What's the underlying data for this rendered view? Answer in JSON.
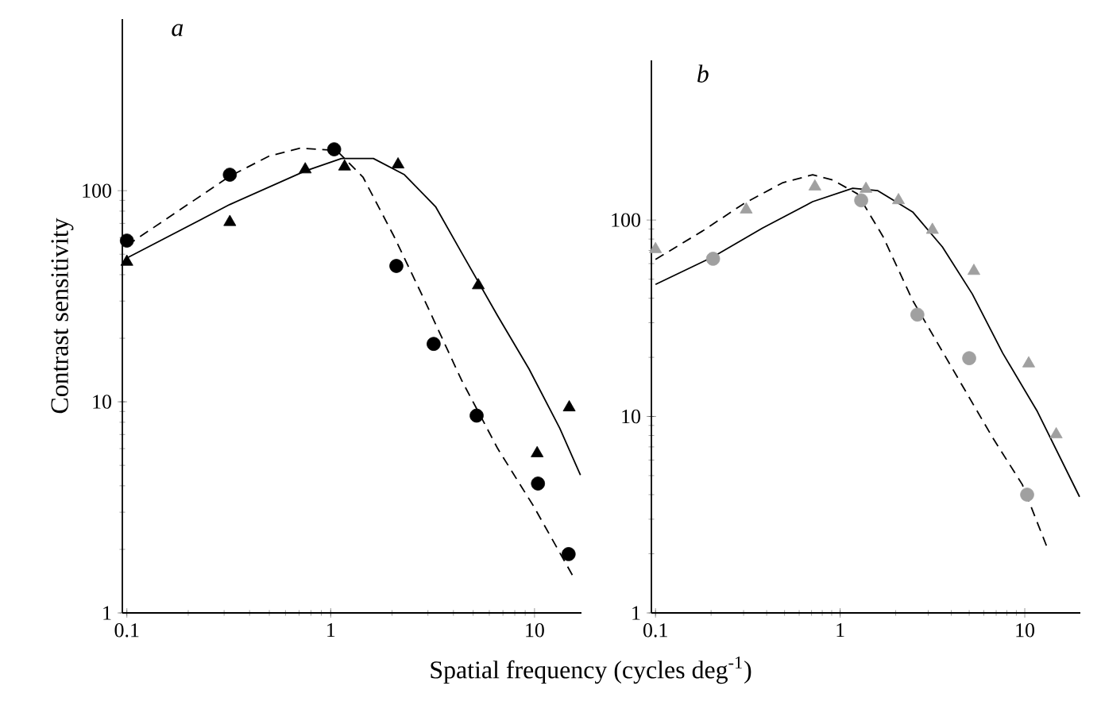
{
  "chart_data": [
    {
      "type": "scatter",
      "title": "*a*",
      "xlabel": "Spatial frequency (cycles deg$^{-1}$)",
      "ylabel": "Contrast sensitivity",
      "log": "xy",
      "xlim": [
        0.095,
        17
      ],
      "ylim": [
        1,
        650
      ],
      "xticks": [
        0.1,
        1,
        10
      ],
      "yticks": [
        1,
        10,
        100
      ],
      "series": [
        {
          "type": "scatter",
          "marker": "circle",
          "color": "#000000",
          "x": [
            0.1,
            0.32,
            1.04,
            2.1,
            3.2,
            5.2,
            10.4,
            14.7
          ],
          "values": [
            58,
            119,
            157,
            44,
            18.8,
            8.6,
            4.1,
            1.9
          ]
        },
        {
          "type": "scatter",
          "marker": "triangle",
          "color": "#000000",
          "x": [
            0.1,
            0.32,
            0.75,
            1.17,
            2.14,
            5.3,
            10.3,
            14.8
          ],
          "values": [
            46,
            71,
            126,
            130,
            133,
            35.6,
            5.7,
            9.4
          ]
        },
        {
          "type": "line",
          "line_style": "solid",
          "marker": "none",
          "color": "#000000",
          "x": [
            0.1,
            0.32,
            0.75,
            1.13,
            1.62,
            2.3,
            3.27,
            4.38,
            6.6,
            9.4,
            13.3,
            16.8
          ],
          "values": [
            48,
            86,
            124,
            142,
            142,
            119,
            84,
            51,
            25.5,
            14.3,
            7.5,
            4.5
          ]
        },
        {
          "type": "line",
          "line_style": "dashed",
          "marker": "none",
          "color": "#000000",
          "x": [
            0.1,
            0.185,
            0.32,
            0.5,
            0.71,
            1.07,
            1.44,
            2.04,
            2.9,
            4.38,
            6.6,
            9.9,
            15.4
          ],
          "values": [
            55,
            82,
            117,
            146,
            159,
            155,
            116,
            61,
            30,
            12.7,
            6.0,
            3.2,
            1.5
          ]
        }
      ]
    },
    {
      "type": "scatter",
      "title": "*b*",
      "log": "xy",
      "xlim": [
        0.095,
        20
      ],
      "ylim": [
        1,
        650
      ],
      "xticks": [
        0.1,
        1,
        10
      ],
      "yticks": [
        1,
        10,
        100
      ],
      "series": [
        {
          "type": "scatter",
          "marker": "circle",
          "color": "#a0a0a0",
          "x": [
            0.205,
            1.3,
            2.62,
            5.0,
            10.3
          ],
          "values": [
            63.5,
            126,
            33,
            19.8,
            4.0
          ]
        },
        {
          "type": "scatter",
          "marker": "triangle",
          "color": "#a0a0a0",
          "x": [
            0.1,
            0.31,
            0.73,
            1.38,
            2.07,
            3.16,
            5.3,
            10.5,
            14.8
          ],
          "values": [
            71,
            113,
            148,
            144,
            126,
            89,
            55,
            18.6,
            8.1
          ]
        },
        {
          "type": "line",
          "line_style": "solid",
          "marker": "none",
          "color": "#000000",
          "x": [
            0.1,
            0.205,
            0.38,
            0.71,
            1.17,
            1.6,
            2.47,
            3.58,
            5.2,
            7.6,
            11.7,
            19.8
          ],
          "values": [
            47,
            65,
            91,
            124,
            145,
            141,
            110,
            73,
            42,
            21,
            10.6,
            3.9
          ]
        },
        {
          "type": "line",
          "line_style": "dashed",
          "marker": "none",
          "color": "#000000",
          "x": [
            0.1,
            0.18,
            0.3,
            0.49,
            0.71,
            0.91,
            1.24,
            1.7,
            2.47,
            4.06,
            6.7,
            9.7,
            13.1
          ],
          "values": [
            63,
            88,
            121,
            155,
            170,
            160,
            136,
            83,
            39,
            17.5,
            7.8,
            4.5,
            2.2
          ]
        }
      ]
    }
  ]
}
